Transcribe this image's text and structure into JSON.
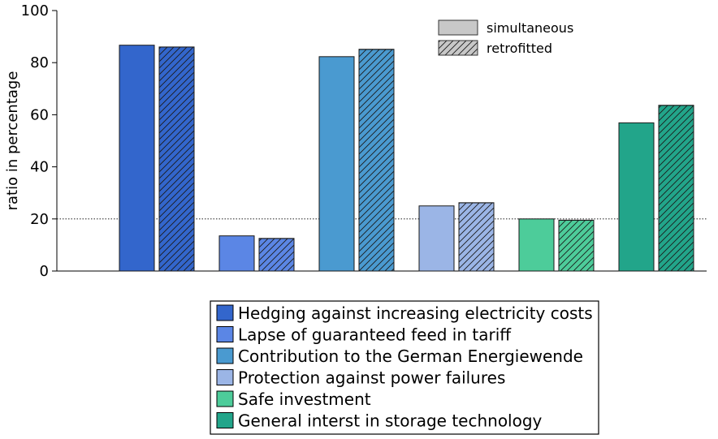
{
  "chart_data": {
    "type": "bar",
    "title": "",
    "xlabel": "",
    "ylabel": "ratio in percentage",
    "ylim": [
      0,
      100
    ],
    "yticks": [
      0,
      20,
      40,
      60,
      80,
      100
    ],
    "reference_line": 20,
    "grid": false,
    "legend_top": {
      "placement": "top-right",
      "items": [
        {
          "label": "simultaneous",
          "pattern": "solid"
        },
        {
          "label": "retrofitted",
          "pattern": "hatched"
        }
      ]
    },
    "legend_bottom_placement": "bottom",
    "categories": [
      "Hedging against increasing electricity costs",
      "Lapse of guaranteed feed in tariff",
      "Contribution to the German Energiewende",
      "Protection against power failures",
      "Safe investment",
      "General interst in storage technology"
    ],
    "colors": [
      "#3366cc",
      "#5b86e5",
      "#4a9ad0",
      "#9bb5e6",
      "#4dcc9a",
      "#22a58a"
    ],
    "series": [
      {
        "label": "simultaneous",
        "values": [
          86.7,
          13.5,
          82.3,
          25.0,
          20.0,
          56.9
        ]
      },
      {
        "label": "retrofitted",
        "values": [
          86.0,
          12.5,
          85.1,
          26.2,
          19.5,
          63.6
        ]
      }
    ]
  }
}
